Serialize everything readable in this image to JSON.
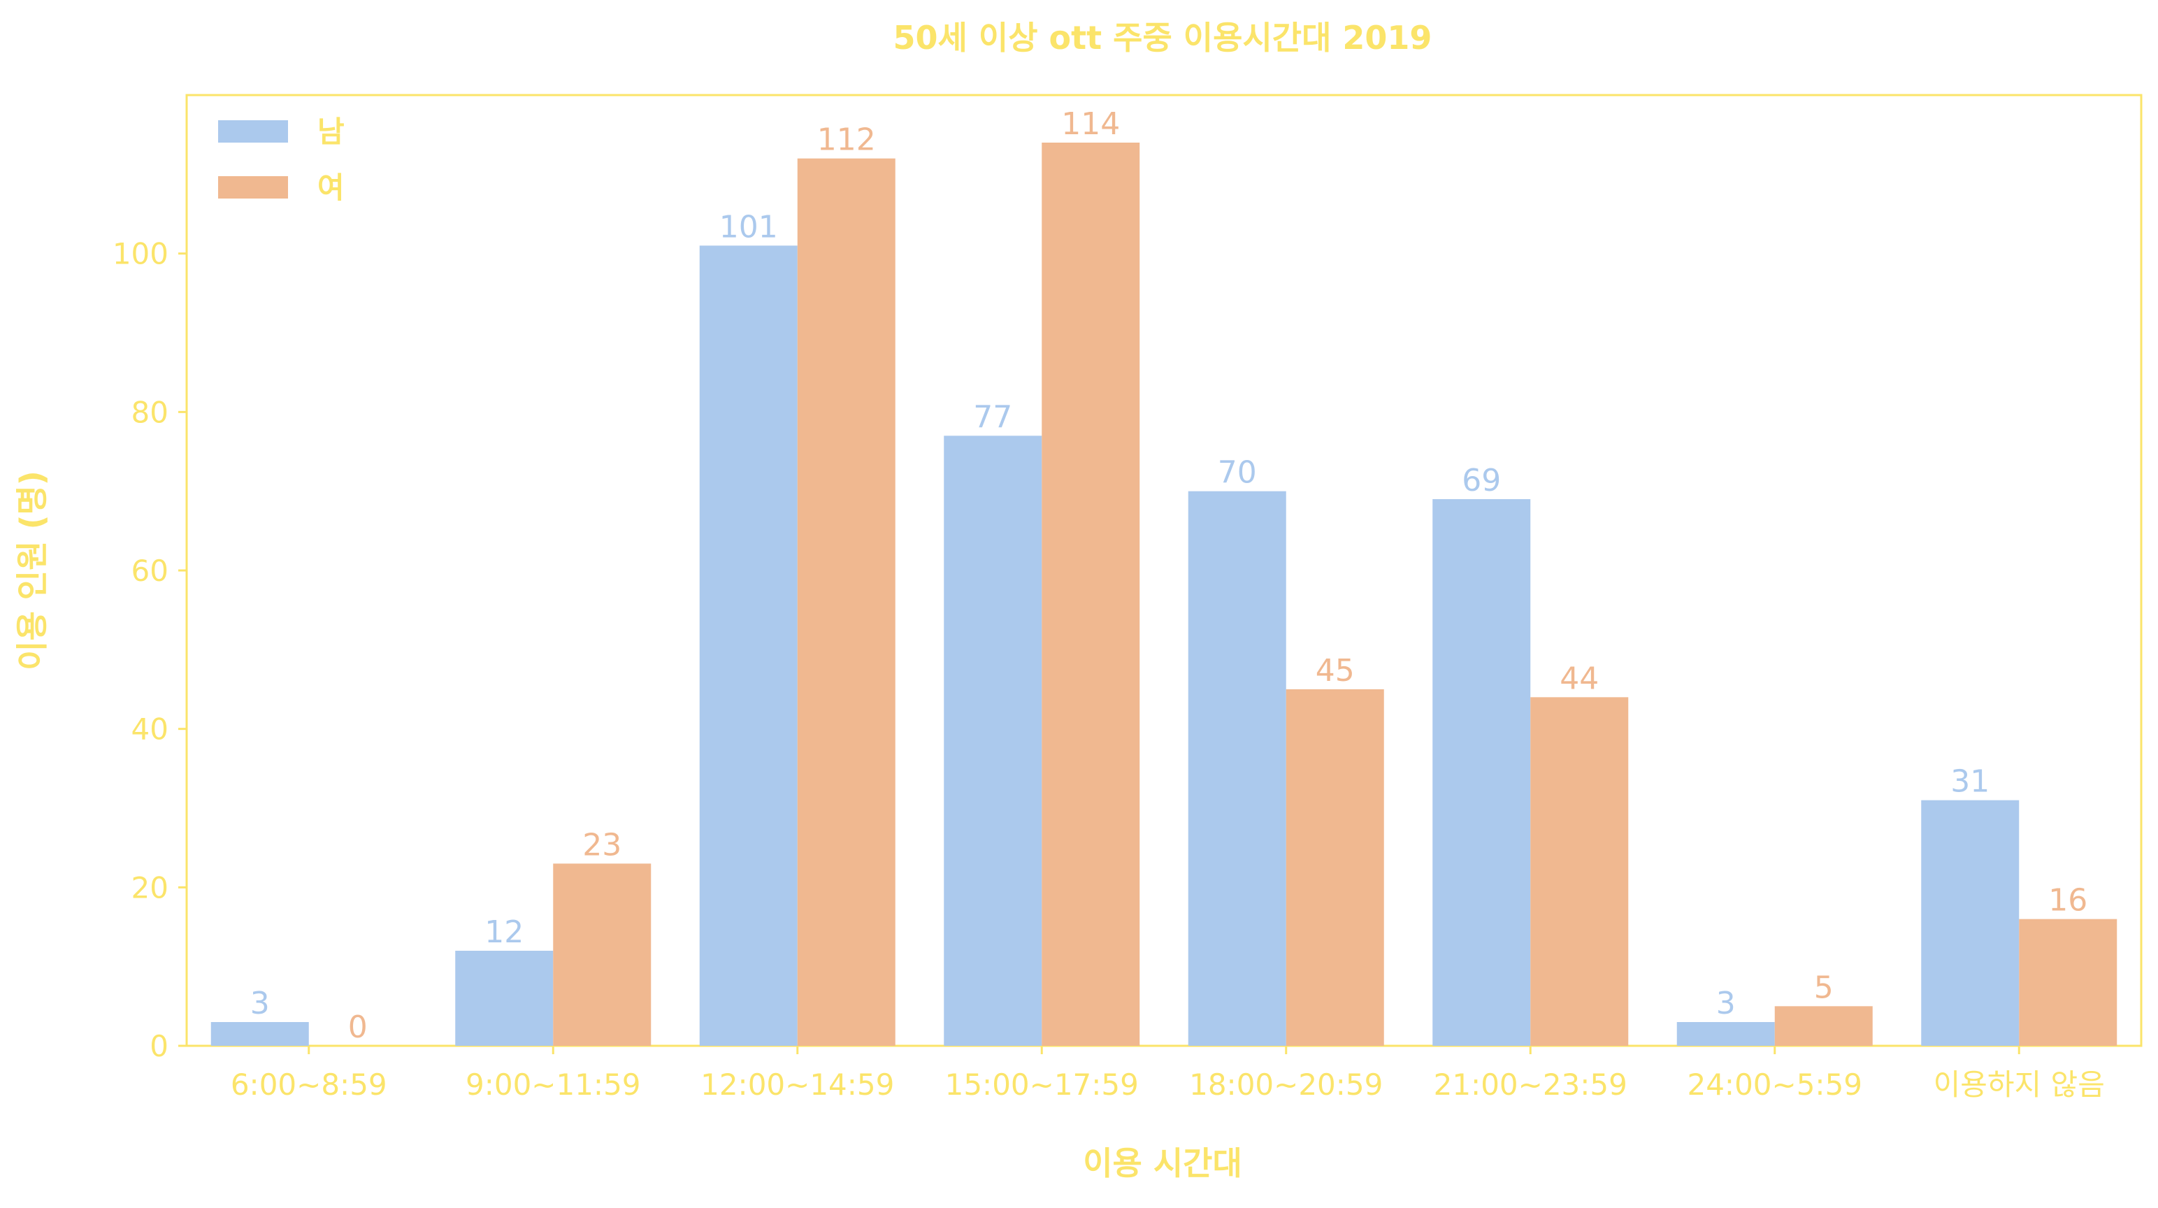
{
  "chart_data": {
    "type": "bar",
    "title": "50세 이상 ott 주중 이용시간대 2019",
    "xlabel": "이용 시간대",
    "ylabel": "이용 인원 (명)",
    "categories": [
      "6:00~8:59",
      "9:00~11:59",
      "12:00~14:59",
      "15:00~17:59",
      "18:00~20:59",
      "21:00~23:59",
      "24:00~5:59",
      "이용하지 않음"
    ],
    "series": [
      {
        "name": "남",
        "values": [
          3,
          12,
          101,
          77,
          70,
          69,
          3,
          31
        ],
        "color": "#abc9ed"
      },
      {
        "name": "여",
        "values": [
          0,
          23,
          112,
          114,
          45,
          44,
          5,
          16
        ],
        "color": "#f0b890"
      }
    ],
    "ylim": [
      0,
      120
    ],
    "yticks": [
      0,
      20,
      40,
      60,
      80,
      100
    ],
    "grid": false,
    "legend_position": "top-left",
    "text_color": "#fbe46a",
    "frame_color": "#fbe46a"
  }
}
